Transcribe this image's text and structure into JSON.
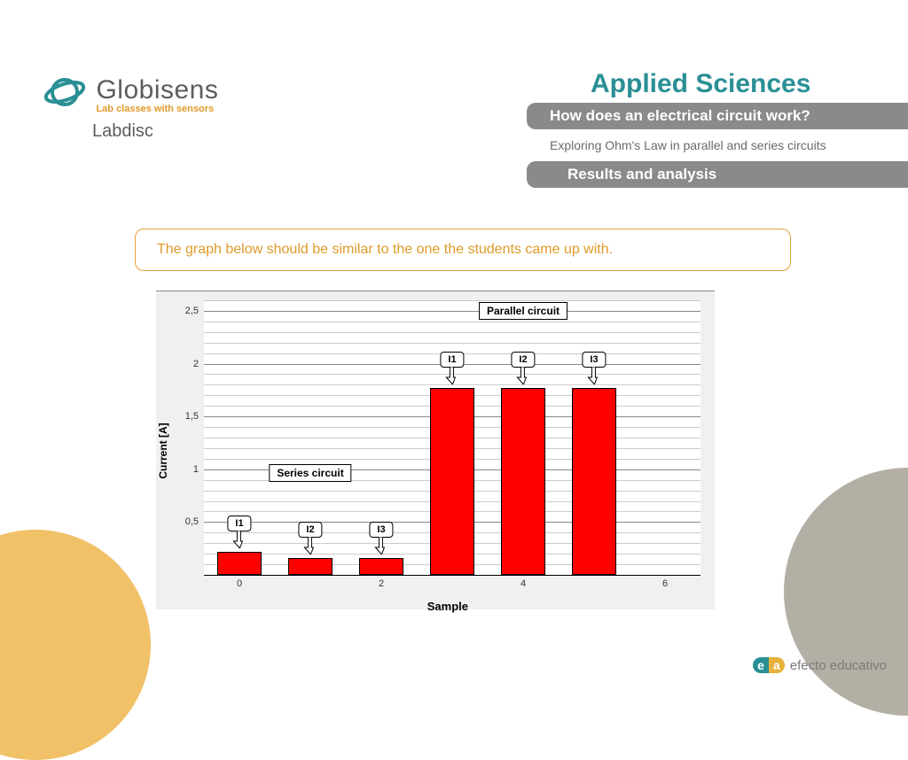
{
  "logo": {
    "main": "Globisens",
    "sub": "Lab classes with sensors",
    "labdisc": "Labdisc",
    "color_main": "#5c5c5c",
    "color_sub": "#e09a2a",
    "globe_color": "#2a8f95"
  },
  "header": {
    "title": "Applied Sciences",
    "title_color": "#2a8f95",
    "bar1": "How does an electrical circuit work?",
    "sub2": "Exploring Ohm's Law in parallel and series circuits",
    "bar2": "Results and analysis",
    "bar_bg": "#8a8a8a",
    "bar_fg": "#ffffff"
  },
  "note": {
    "text": "The graph below should be similar to the one the students came up with.",
    "border_color": "#e6a23c",
    "text_color": "#e09a2a"
  },
  "chart": {
    "type": "bar",
    "panel_bg": "#f0f0f0",
    "plot_bg": "#ffffff",
    "grid_color_major": "#888888",
    "grid_color_minor": "#cccccc",
    "ylabel": "Current [A]",
    "xlabel": "Sample",
    "ylim": [
      0,
      2.6
    ],
    "ytick_step": 0.5,
    "yticks": [
      "0,5",
      "1",
      "1,5",
      "2",
      "2,5"
    ],
    "x_domain": [
      -0.5,
      6.5
    ],
    "xticks": [
      0,
      2,
      4,
      6
    ],
    "bar_color": "#ff0000",
    "bar_border": "#000000",
    "bar_width": 0.62,
    "bars": [
      {
        "x": 0,
        "value": 0.22,
        "callout": "I1"
      },
      {
        "x": 1,
        "value": 0.16,
        "callout": "I2"
      },
      {
        "x": 2,
        "value": 0.16,
        "callout": "I3"
      },
      {
        "x": 3,
        "value": 1.77,
        "callout": "I1"
      },
      {
        "x": 4,
        "value": 1.77,
        "callout": "I2"
      },
      {
        "x": 5,
        "value": 1.77,
        "callout": "I3"
      }
    ],
    "group_labels": [
      {
        "text": "Series circuit",
        "x_center": 1.0,
        "y": 1.05
      },
      {
        "text": "Parallel circuit",
        "x_center": 4.0,
        "y": 2.58
      }
    ],
    "label_fontsize": 12,
    "tick_fontsize": 11
  },
  "decor": {
    "circle_yellow": "#f1c167",
    "circle_grey": "#b4afa4"
  },
  "footer": {
    "ea_e": "e",
    "ea_a": "a",
    "text": "efecto educativo",
    "text_color": "#7a7a7a"
  }
}
